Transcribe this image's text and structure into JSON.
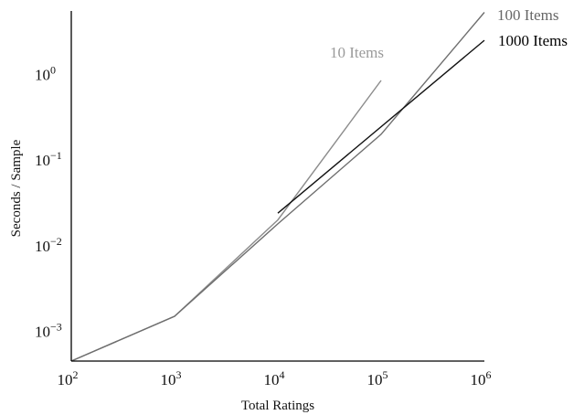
{
  "chart_data": {
    "type": "line",
    "title": "",
    "xlabel": "Total Ratings",
    "ylabel": "Seconds / Sample",
    "x_scale": "log",
    "y_scale": "log",
    "xlim": [
      100,
      1000000
    ],
    "ylim": [
      0.00045,
      5.5
    ],
    "grid": false,
    "legend": "inline labels",
    "x_ticks": [
      {
        "base": "10",
        "exp": "2",
        "value": 100
      },
      {
        "base": "10",
        "exp": "3",
        "value": 1000
      },
      {
        "base": "10",
        "exp": "4",
        "value": 10000
      },
      {
        "base": "10",
        "exp": "5",
        "value": 100000
      },
      {
        "base": "10",
        "exp": "6",
        "value": 1000000
      }
    ],
    "y_ticks": [
      {
        "base": "10",
        "exp": "−3",
        "value": 0.001
      },
      {
        "base": "10",
        "exp": "−2",
        "value": 0.01
      },
      {
        "base": "10",
        "exp": "−1",
        "value": 0.1
      },
      {
        "base": "10",
        "exp": "0",
        "value": 1
      }
    ],
    "series": [
      {
        "name": "10 Items",
        "color": "#8c8c8c",
        "label_color": "#9a9a9a",
        "points": [
          [
            100,
            0.00045
          ],
          [
            1000,
            0.0015
          ],
          [
            10000,
            0.02
          ],
          [
            100000,
            0.85
          ]
        ]
      },
      {
        "name": "100 Items",
        "color": "#6e6e6e",
        "label_color": "#666666",
        "points": [
          [
            100,
            0.00045
          ],
          [
            1000,
            0.0015
          ],
          [
            10000,
            0.018
          ],
          [
            100000,
            0.2
          ],
          [
            1000000,
            5.3
          ]
        ]
      },
      {
        "name": "1000 Items",
        "color": "#111111",
        "label_color": "#000000",
        "points": [
          [
            10000,
            0.024
          ],
          [
            1000000,
            2.5
          ]
        ]
      }
    ]
  }
}
